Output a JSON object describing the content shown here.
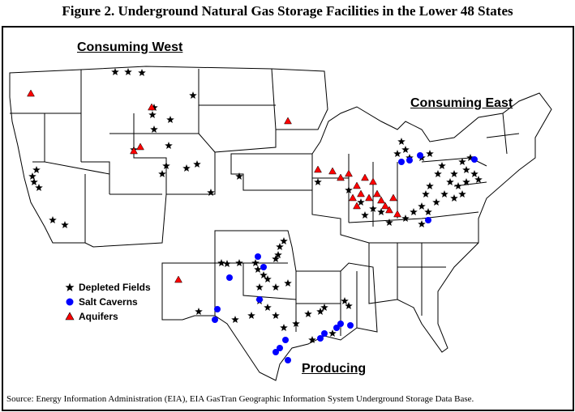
{
  "title": "Figure 2.  Underground Natural Gas Storage Facilities in the Lower 48 States",
  "regions": {
    "west": "Consuming West",
    "east": "Consuming East",
    "producing": "Producing"
  },
  "legend": [
    {
      "label": "Depleted Fields",
      "symbol": "star",
      "color": "#000000"
    },
    {
      "label": "Salt Caverns",
      "symbol": "circle",
      "color": "#0000ff"
    },
    {
      "label": "Aquifers",
      "symbol": "triangle",
      "color": "#ff0000"
    }
  ],
  "source": "Source:  Energy Information Administration (EIA), EIA GasTran Geographic Information System Underground Storage Data Base."
}
